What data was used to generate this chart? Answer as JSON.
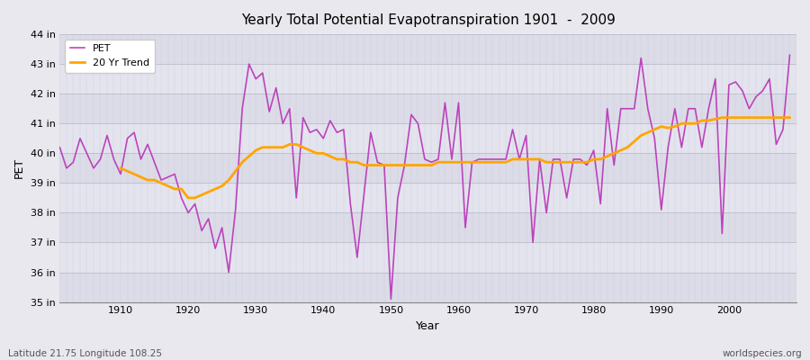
{
  "title": "Yearly Total Potential Evapotranspiration 1901  -  2009",
  "xlabel": "Year",
  "ylabel": "PET",
  "xlabel_bottom": "Latitude 21.75 Longitude 108.25",
  "watermark": "worldspecies.org",
  "pet_color": "#bb44bb",
  "trend_color": "#ffa500",
  "background_color": "#e8e8ee",
  "grid_color": "#ccccdd",
  "ylim": [
    35,
    44
  ],
  "xlim": [
    1901,
    2010
  ],
  "ytick_labels": [
    "35 in",
    "36 in",
    "37 in",
    "38 in",
    "39 in",
    "40 in",
    "41 in",
    "42 in",
    "43 in",
    "44 in"
  ],
  "ytick_values": [
    35,
    36,
    37,
    38,
    39,
    40,
    41,
    42,
    43,
    44
  ],
  "xtick_positions": [
    1910,
    1920,
    1930,
    1940,
    1950,
    1960,
    1970,
    1980,
    1990,
    2000
  ],
  "years": [
    1901,
    1902,
    1903,
    1904,
    1905,
    1906,
    1907,
    1908,
    1909,
    1910,
    1911,
    1912,
    1913,
    1914,
    1915,
    1916,
    1917,
    1918,
    1919,
    1920,
    1921,
    1922,
    1923,
    1924,
    1925,
    1926,
    1927,
    1928,
    1929,
    1930,
    1931,
    1932,
    1933,
    1934,
    1935,
    1936,
    1937,
    1938,
    1939,
    1940,
    1941,
    1942,
    1943,
    1944,
    1945,
    1946,
    1947,
    1948,
    1949,
    1950,
    1951,
    1952,
    1953,
    1954,
    1955,
    1956,
    1957,
    1958,
    1959,
    1960,
    1961,
    1962,
    1963,
    1964,
    1965,
    1966,
    1967,
    1968,
    1969,
    1970,
    1971,
    1972,
    1973,
    1974,
    1975,
    1976,
    1977,
    1978,
    1979,
    1980,
    1981,
    1982,
    1983,
    1984,
    1985,
    1986,
    1987,
    1988,
    1989,
    1990,
    1991,
    1992,
    1993,
    1994,
    1995,
    1996,
    1997,
    1998,
    1999,
    2000,
    2001,
    2002,
    2003,
    2004,
    2005,
    2006,
    2007,
    2008,
    2009
  ],
  "pet_values": [
    40.2,
    39.5,
    39.7,
    40.5,
    40.0,
    39.5,
    39.8,
    40.6,
    39.8,
    39.3,
    40.5,
    40.7,
    39.8,
    40.3,
    39.7,
    39.1,
    39.2,
    39.3,
    38.5,
    38.0,
    38.3,
    37.4,
    37.8,
    36.8,
    37.5,
    36.0,
    38.1,
    41.5,
    43.0,
    42.5,
    42.7,
    41.4,
    42.2,
    41.0,
    41.5,
    38.5,
    41.2,
    40.7,
    40.8,
    40.5,
    41.1,
    40.7,
    40.8,
    38.3,
    36.5,
    38.6,
    40.7,
    39.7,
    39.6,
    35.1,
    38.5,
    39.6,
    41.3,
    41.0,
    39.8,
    39.7,
    39.8,
    41.7,
    39.8,
    41.7,
    37.5,
    39.7,
    39.8,
    39.8,
    39.8,
    39.8,
    39.8,
    40.8,
    39.8,
    40.6,
    37.0,
    39.8,
    38.0,
    39.8,
    39.8,
    38.5,
    39.8,
    39.8,
    39.6,
    40.1,
    38.3,
    41.5,
    39.6,
    41.5,
    41.5,
    41.5,
    43.2,
    41.5,
    40.5,
    38.1,
    40.2,
    41.5,
    40.2,
    41.5,
    41.5,
    40.2,
    41.5,
    42.5,
    37.3,
    42.3,
    42.4,
    42.1,
    41.5,
    41.9,
    42.1,
    42.5,
    40.3,
    40.8,
    43.3
  ],
  "trend_years": [
    1910,
    1911,
    1912,
    1913,
    1914,
    1915,
    1916,
    1917,
    1918,
    1919,
    1920,
    1921,
    1922,
    1923,
    1924,
    1925,
    1926,
    1927,
    1928,
    1929,
    1930,
    1931,
    1932,
    1933,
    1934,
    1935,
    1936,
    1937,
    1938,
    1939,
    1940,
    1941,
    1942,
    1943,
    1944,
    1945,
    1946,
    1947,
    1948,
    1949,
    1950,
    1951,
    1952,
    1953,
    1954,
    1955,
    1956,
    1957,
    1958,
    1959,
    1960,
    1961,
    1962,
    1963,
    1964,
    1965,
    1966,
    1967,
    1968,
    1969,
    1970,
    1971,
    1972,
    1973,
    1974,
    1975,
    1976,
    1977,
    1978,
    1979,
    1980,
    1981,
    1982,
    1983,
    1984,
    1985,
    1986,
    1987,
    1988,
    1989,
    1990,
    1991,
    1992,
    1993,
    1994,
    1995,
    1996,
    1997,
    1998,
    1999,
    2000,
    2001,
    2002,
    2003,
    2004,
    2005,
    2006,
    2007,
    2008,
    2009
  ],
  "trend_values": [
    39.5,
    39.4,
    39.3,
    39.2,
    39.1,
    39.1,
    39.0,
    38.9,
    38.8,
    38.8,
    38.5,
    38.5,
    38.6,
    38.7,
    38.8,
    38.9,
    39.1,
    39.4,
    39.7,
    39.9,
    40.1,
    40.2,
    40.2,
    40.2,
    40.2,
    40.3,
    40.3,
    40.2,
    40.1,
    40.0,
    40.0,
    39.9,
    39.8,
    39.8,
    39.7,
    39.7,
    39.6,
    39.6,
    39.6,
    39.6,
    39.6,
    39.6,
    39.6,
    39.6,
    39.6,
    39.6,
    39.6,
    39.7,
    39.7,
    39.7,
    39.7,
    39.7,
    39.7,
    39.7,
    39.7,
    39.7,
    39.7,
    39.7,
    39.8,
    39.8,
    39.8,
    39.8,
    39.8,
    39.7,
    39.7,
    39.7,
    39.7,
    39.7,
    39.7,
    39.7,
    39.8,
    39.8,
    39.9,
    40.0,
    40.1,
    40.2,
    40.4,
    40.6,
    40.7,
    40.8,
    40.9,
    40.85,
    40.9,
    41.0,
    41.0,
    41.0,
    41.1,
    41.1,
    41.15,
    41.2,
    41.2,
    41.2,
    41.2,
    41.2,
    41.2,
    41.2,
    41.2,
    41.2,
    41.2,
    41.2
  ]
}
